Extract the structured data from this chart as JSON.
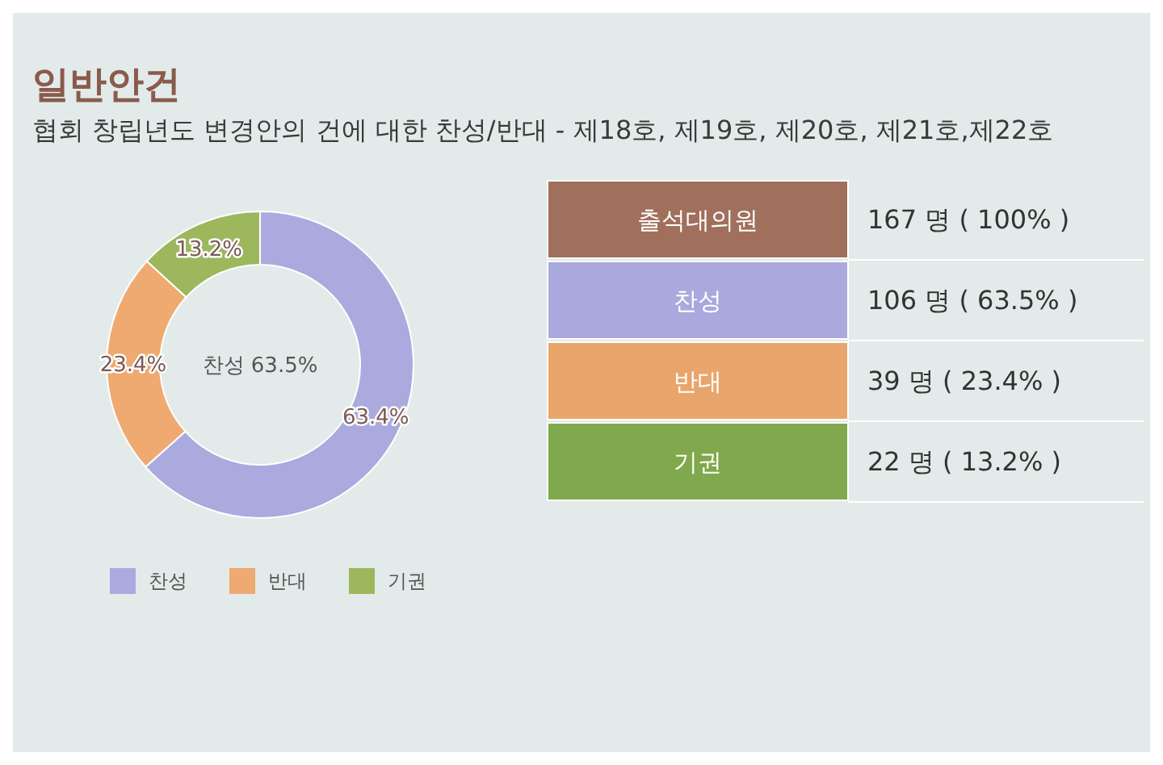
{
  "chart_data": [
    {
      "type": "donut",
      "title": "일반안건",
      "subtitle": "협회 창립년도 변경안의 건에 대한 찬성/반대 - 제18호, 제19호, 제20호, 제21호,제22호",
      "categories": [
        "찬성",
        "반대",
        "기권"
      ],
      "values": [
        63.4,
        23.4,
        13.2
      ],
      "value_labels": [
        "63.4%",
        "23.4%",
        "13.2%"
      ],
      "colors": [
        "#aaaadf",
        "#eeaa70",
        "#9cb75c"
      ],
      "annotations": [
        "찬성 63.5%"
      ],
      "legend": "bottom"
    },
    {
      "type": "other",
      "categories": [
        "출석대의원",
        "찬성",
        "반대",
        "기권"
      ],
      "value_labels": [
        "167 명 ( 100% )",
        "106 명 ( 63.5% )",
        "39 명 ( 23.4% )",
        "22 명 ( 13.2% )"
      ],
      "colors": [
        "#a0705c",
        "#a9a9de",
        "#e9a66c",
        "#80a84c"
      ]
    }
  ]
}
